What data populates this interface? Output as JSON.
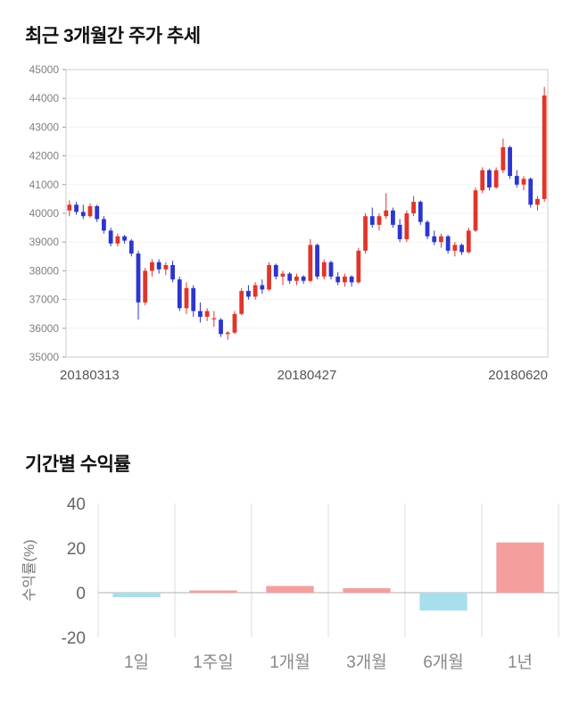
{
  "titles": {
    "price_trend": "최근 3개월간 주가 추세",
    "period_return": "기간별 수익률"
  },
  "chart_data": [
    {
      "type": "candlestick",
      "title": "최근 3개월간 주가 추세",
      "ylim": [
        35000,
        45000
      ],
      "y_ticks": [
        35000,
        36000,
        37000,
        38000,
        39000,
        40000,
        41000,
        42000,
        43000,
        44000,
        45000
      ],
      "x_tick_labels": [
        "20180313",
        "20180427",
        "20180620"
      ],
      "up_color": "#e0352b",
      "down_color": "#2d35cf",
      "grid_color": "#f2f2f2",
      "border_color": "#cccccc",
      "tick_text_color": "#808080",
      "x_label_color": "#555555",
      "candles": [
        [
          40100,
          40450,
          39900,
          40300
        ],
        [
          40300,
          40400,
          39950,
          40050
        ],
        [
          40050,
          40300,
          39800,
          39900
        ],
        [
          39900,
          40350,
          39850,
          40250
        ],
        [
          40250,
          40300,
          39700,
          39800
        ],
        [
          39800,
          39900,
          39300,
          39400
        ],
        [
          39400,
          39500,
          38850,
          38950
        ],
        [
          38950,
          39300,
          38850,
          39200
        ],
        [
          39200,
          39250,
          38950,
          39050
        ],
        [
          39050,
          39100,
          38500,
          38600
        ],
        [
          38600,
          38700,
          36300,
          36900
        ],
        [
          36900,
          38100,
          36800,
          38000
        ],
        [
          38000,
          38400,
          37800,
          38300
        ],
        [
          38300,
          38400,
          37900,
          38050
        ],
        [
          38050,
          38300,
          37850,
          38200
        ],
        [
          38200,
          38350,
          37600,
          37700
        ],
        [
          37700,
          37800,
          36600,
          36700
        ],
        [
          36700,
          37600,
          36500,
          37400
        ],
        [
          37400,
          37500,
          36400,
          36600
        ],
        [
          36600,
          36900,
          36200,
          36400
        ],
        [
          36400,
          36700,
          36250,
          36600
        ],
        [
          36350,
          36600,
          36050,
          36350
        ],
        [
          36300,
          36350,
          35700,
          35800
        ],
        [
          35800,
          35900,
          35600,
          35850
        ],
        [
          35850,
          36600,
          35800,
          36500
        ],
        [
          36500,
          37400,
          36450,
          37300
        ],
        [
          37300,
          37500,
          37000,
          37100
        ],
        [
          37100,
          37600,
          37000,
          37500
        ],
        [
          37500,
          37700,
          37200,
          37350
        ],
        [
          37350,
          38300,
          37300,
          38200
        ],
        [
          38200,
          38250,
          37700,
          37800
        ],
        [
          37800,
          38000,
          37500,
          37900
        ],
        [
          37900,
          37950,
          37550,
          37650
        ],
        [
          37650,
          37900,
          37500,
          37800
        ],
        [
          37800,
          37850,
          37550,
          37650
        ],
        [
          37650,
          39100,
          37600,
          38900
        ],
        [
          38900,
          38950,
          37700,
          37800
        ],
        [
          37800,
          38400,
          37700,
          38300
        ],
        [
          38300,
          38350,
          37700,
          37800
        ],
        [
          37800,
          37950,
          37500,
          37600
        ],
        [
          37600,
          37900,
          37450,
          37800
        ],
        [
          37800,
          37850,
          37450,
          37600
        ],
        [
          37600,
          38800,
          37550,
          38700
        ],
        [
          38700,
          40000,
          38600,
          39900
        ],
        [
          39900,
          40200,
          39500,
          39600
        ],
        [
          39600,
          40000,
          39400,
          39900
        ],
        [
          39900,
          40700,
          39800,
          40100
        ],
        [
          40100,
          40200,
          39500,
          39600
        ],
        [
          39600,
          39800,
          39000,
          39100
        ],
        [
          39100,
          40100,
          39000,
          40000
        ],
        [
          40000,
          40600,
          39900,
          40400
        ],
        [
          40400,
          40450,
          39600,
          39700
        ],
        [
          39700,
          39750,
          39100,
          39200
        ],
        [
          39200,
          39400,
          38900,
          39000
        ],
        [
          39000,
          39300,
          38800,
          39200
        ],
        [
          39200,
          39250,
          38600,
          38700
        ],
        [
          38700,
          39000,
          38500,
          38900
        ],
        [
          38900,
          38950,
          38550,
          38650
        ],
        [
          38650,
          39500,
          38600,
          39400
        ],
        [
          39400,
          40900,
          39350,
          40800
        ],
        [
          40800,
          41600,
          40700,
          41500
        ],
        [
          41500,
          41550,
          40800,
          40900
        ],
        [
          40900,
          41600,
          40850,
          41500
        ],
        [
          41500,
          42600,
          41400,
          42300
        ],
        [
          42300,
          42350,
          41200,
          41300
        ],
        [
          41300,
          41500,
          40900,
          41000
        ],
        [
          41000,
          41300,
          40800,
          41200
        ],
        [
          41200,
          41250,
          40200,
          40300
        ],
        [
          40300,
          40600,
          40100,
          40500
        ],
        [
          40500,
          44400,
          40400,
          44100
        ]
      ]
    },
    {
      "type": "bar",
      "title": "기간별 수익률",
      "ylabel": "수익률(%)",
      "categories": [
        "1일",
        "1주일",
        "1개월",
        "3개월",
        "6개월",
        "1년"
      ],
      "values": [
        -2,
        1,
        3,
        2,
        -8,
        22.5
      ],
      "ylim": [
        -20,
        40
      ],
      "y_ticks": [
        40,
        20,
        0,
        -20
      ],
      "positive_color": "#f59e9e",
      "negative_color": "#a8dfef",
      "separator_color": "#dddddd",
      "zero_line_color": "#b0b0b0",
      "tick_text_color": "#666666",
      "category_text_color": "#888888",
      "ylabel_color": "#777777"
    }
  ]
}
